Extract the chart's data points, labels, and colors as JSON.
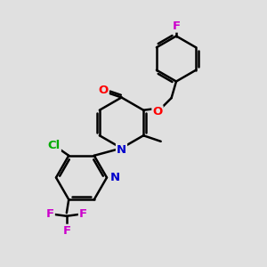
{
  "bg_color": "#e0e0e0",
  "bond_color": "#000000",
  "bond_width": 1.8,
  "atom_colors": {
    "O": "#ff0000",
    "N": "#0000cc",
    "F": "#cc00cc",
    "Cl": "#00aa00",
    "C": "#000000"
  },
  "font_size": 9.5
}
